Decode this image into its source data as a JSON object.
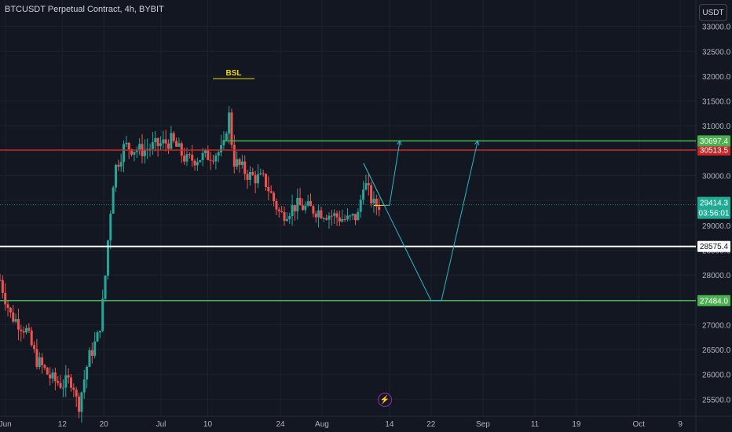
{
  "header": {
    "symbol_title": "BTCUSDT Perpetual Contract, 4h, BYBIT",
    "currency_button": "USDT"
  },
  "icons": {
    "bolt": "lightning-bolt-icon"
  },
  "colors": {
    "background": "#131722",
    "grid": "#1e222d",
    "axis_text": "#b2b5be",
    "candle_up": "#26a69a",
    "candle_down": "#ef5350",
    "red_level": "#c62828",
    "green_level": "#4caf50",
    "white_level": "#ffffff",
    "bsl": "#f5d90a",
    "projection": "#2bb6c8",
    "price_badge": "#22ab94"
  },
  "chart_data": {
    "type": "candlestick",
    "title": "BTCUSDT Perpetual Contract, 4h, BYBIT",
    "ylim": [
      25000,
      33500
    ],
    "y_ticks": [
      25500,
      26000,
      26500,
      27000,
      27500,
      28000,
      28500,
      29000,
      29500,
      30000,
      30500,
      31000,
      31500,
      32000,
      32500,
      33000
    ],
    "y_tick_labels": [
      "25500.0",
      "26000.0",
      "26500.0",
      "27000.0",
      "27500.0",
      "28000.0",
      "28500.0",
      "29000.0",
      "29500.0",
      "30000.0",
      "30500.0",
      "31000.0",
      "31500.0",
      "32000.0",
      "32500.0",
      "33000.0"
    ],
    "x_range": [
      "2023-05-31",
      "2023-10-12"
    ],
    "x_ticks": [
      {
        "date": "2023-06-01",
        "label": "Jun"
      },
      {
        "date": "2023-06-12",
        "label": "12"
      },
      {
        "date": "2023-06-20",
        "label": "20"
      },
      {
        "date": "2023-07-01",
        "label": "Jul"
      },
      {
        "date": "2023-07-10",
        "label": "10"
      },
      {
        "date": "2023-07-24",
        "label": "24"
      },
      {
        "date": "2023-08-01",
        "label": "Aug"
      },
      {
        "date": "2023-08-14",
        "label": "14"
      },
      {
        "date": "2023-08-22",
        "label": "22"
      },
      {
        "date": "2023-09-01",
        "label": "Sep"
      },
      {
        "date": "2023-09-11",
        "label": "11"
      },
      {
        "date": "2023-09-19",
        "label": "19"
      },
      {
        "date": "2023-10-01",
        "label": "Oct"
      },
      {
        "date": "2023-10-09",
        "label": "9"
      }
    ],
    "price_path": [
      [
        "2023-05-31",
        27900
      ],
      [
        "2023-06-02",
        27200
      ],
      [
        "2023-06-05",
        26900
      ],
      [
        "2023-06-07",
        26300
      ],
      [
        "2023-06-10",
        25900
      ],
      [
        "2023-06-12",
        25800
      ],
      [
        "2023-06-14",
        25900
      ],
      [
        "2023-06-15",
        25300
      ],
      [
        "2023-06-17",
        26300
      ],
      [
        "2023-06-19",
        26800
      ],
      [
        "2023-06-20",
        27600
      ],
      [
        "2023-06-21",
        29000
      ],
      [
        "2023-06-22",
        30100
      ],
      [
        "2023-06-24",
        30600
      ],
      [
        "2023-06-27",
        30500
      ],
      [
        "2023-06-30",
        30600
      ],
      [
        "2023-07-03",
        30700
      ],
      [
        "2023-07-06",
        30300
      ],
      [
        "2023-07-10",
        30400
      ],
      [
        "2023-07-13",
        30500
      ],
      [
        "2023-07-14",
        31300
      ],
      [
        "2023-07-15",
        30300
      ],
      [
        "2023-07-18",
        30000
      ],
      [
        "2023-07-21",
        29900
      ],
      [
        "2023-07-24",
        29200
      ],
      [
        "2023-07-27",
        29400
      ],
      [
        "2023-07-31",
        29300
      ],
      [
        "2023-08-03",
        29200
      ],
      [
        "2023-08-06",
        29100
      ],
      [
        "2023-08-08",
        29200
      ],
      [
        "2023-08-09",
        29900
      ],
      [
        "2023-08-11",
        29400
      ],
      [
        "2023-08-12",
        29414
      ]
    ],
    "candle_count": 145,
    "levels": [
      {
        "name": "red-resistance",
        "value": 30513.5,
        "label": "30513.5",
        "color": "#c62828",
        "full_width": true
      },
      {
        "name": "green-target",
        "value": 30697.4,
        "label": "30697.4",
        "color": "#4caf50",
        "from": "2023-07-13"
      },
      {
        "name": "white-level",
        "value": 28575.4,
        "label": "28575.4",
        "color": "#ffffff",
        "full_width": true
      },
      {
        "name": "green-support",
        "value": 27484.0,
        "label": "27484.0",
        "color": "#4caf50",
        "full_width": true
      }
    ],
    "current_price": {
      "value": 29414.3,
      "label": "29414.3",
      "countdown": "03:56:01"
    },
    "annotations": {
      "bsl": {
        "label": "BSL",
        "value": 31950,
        "from": "2023-07-11",
        "to": "2023-07-19"
      },
      "path_short": [
        [
          "2023-08-09",
          30250
        ],
        [
          "2023-08-13",
          29400
        ],
        [
          "2023-08-14",
          29400
        ],
        [
          "2023-08-16",
          30700
        ]
      ],
      "path_long": [
        [
          "2023-08-09",
          30250
        ],
        [
          "2023-08-22",
          27484
        ],
        [
          "2023-08-24",
          27484
        ],
        [
          "2023-08-31",
          30700
        ]
      ],
      "marker_line": {
        "value": 29400,
        "from": "2023-08-11",
        "to": "2023-08-14"
      }
    }
  }
}
